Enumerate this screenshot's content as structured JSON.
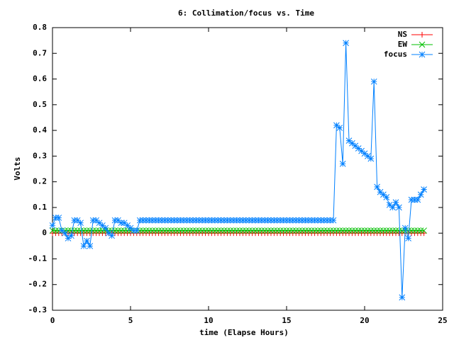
{
  "chart_data": {
    "type": "line",
    "title": "6: Collimation/focus vs. Time",
    "xlabel": "time (Elapse Hours)",
    "ylabel": "Volts",
    "xlim": [
      0,
      25
    ],
    "xticks": [
      0,
      5,
      10,
      15,
      20,
      25
    ],
    "ylim": [
      -0.3,
      0.8
    ],
    "yticks": [
      -0.3,
      -0.2,
      -0.1,
      0,
      0.1,
      0.2,
      0.3,
      0.4,
      0.5,
      0.6,
      0.7,
      0.8
    ],
    "legend": "upper right",
    "x": [
      0,
      0.2,
      0.4,
      0.6,
      0.8,
      1.0,
      1.2,
      1.4,
      1.6,
      1.8,
      2.0,
      2.2,
      2.4,
      2.6,
      2.8,
      3.0,
      3.2,
      3.4,
      3.6,
      3.8,
      4.0,
      4.2,
      4.4,
      4.6,
      4.8,
      5.0,
      5.2,
      5.4,
      5.6,
      5.8,
      6.0,
      6.2,
      6.4,
      6.6,
      6.8,
      7.0,
      7.2,
      7.4,
      7.6,
      7.8,
      8.0,
      8.2,
      8.4,
      8.6,
      8.8,
      9.0,
      9.2,
      9.4,
      9.6,
      9.8,
      10.0,
      10.2,
      10.4,
      10.6,
      10.8,
      11.0,
      11.2,
      11.4,
      11.6,
      11.8,
      12.0,
      12.2,
      12.4,
      12.6,
      12.8,
      13.0,
      13.2,
      13.4,
      13.6,
      13.8,
      14.0,
      14.2,
      14.4,
      14.6,
      14.8,
      15.0,
      15.2,
      15.4,
      15.6,
      15.8,
      16.0,
      16.2,
      16.4,
      16.6,
      16.8,
      17.0,
      17.2,
      17.4,
      17.6,
      17.8,
      18.0,
      18.2,
      18.4,
      18.6,
      18.8,
      19.0,
      19.2,
      19.4,
      19.6,
      19.8,
      20.0,
      20.2,
      20.4,
      20.6,
      20.8,
      21.0,
      21.2,
      21.4,
      21.6,
      21.8,
      22.0,
      22.2,
      22.4,
      22.6,
      22.8,
      23.0,
      23.2,
      23.4,
      23.6,
      23.8
    ],
    "series": [
      {
        "name": "NS",
        "color": "#ff0000",
        "marker": "plus",
        "values": [
          0,
          0,
          0,
          0,
          0,
          0,
          0,
          0,
          0,
          0,
          0,
          0,
          0,
          0,
          0,
          0,
          0,
          0,
          0,
          0,
          0,
          0,
          0,
          0,
          0,
          0,
          0,
          0,
          0,
          0,
          0,
          0,
          0,
          0,
          0,
          0,
          0,
          0,
          0,
          0,
          0,
          0,
          0,
          0,
          0,
          0,
          0,
          0,
          0,
          0,
          0,
          0,
          0,
          0,
          0,
          0,
          0,
          0,
          0,
          0,
          0,
          0,
          0,
          0,
          0,
          0,
          0,
          0,
          0,
          0,
          0,
          0,
          0,
          0,
          0,
          0,
          0,
          0,
          0,
          0,
          0,
          0,
          0,
          0,
          0,
          0,
          0,
          0,
          0,
          0,
          0,
          0,
          0,
          0,
          0,
          0,
          0,
          0,
          0,
          0,
          0,
          0,
          0,
          0,
          0,
          0,
          0,
          0,
          0,
          0,
          0,
          0,
          0,
          0,
          0,
          0,
          0,
          0,
          0,
          0
        ]
      },
      {
        "name": "EW",
        "color": "#00c000",
        "marker": "cross",
        "values": [
          0.01,
          0.01,
          0.01,
          0.01,
          0.01,
          0.01,
          0.01,
          0.01,
          0.01,
          0.01,
          0.01,
          0.01,
          0.01,
          0.01,
          0.01,
          0.01,
          0.01,
          0.01,
          0.01,
          0.01,
          0.01,
          0.01,
          0.01,
          0.01,
          0.01,
          0.01,
          0.01,
          0.01,
          0.01,
          0.01,
          0.01,
          0.01,
          0.01,
          0.01,
          0.01,
          0.01,
          0.01,
          0.01,
          0.01,
          0.01,
          0.01,
          0.01,
          0.01,
          0.01,
          0.01,
          0.01,
          0.01,
          0.01,
          0.01,
          0.01,
          0.01,
          0.01,
          0.01,
          0.01,
          0.01,
          0.01,
          0.01,
          0.01,
          0.01,
          0.01,
          0.01,
          0.01,
          0.01,
          0.01,
          0.01,
          0.01,
          0.01,
          0.01,
          0.01,
          0.01,
          0.01,
          0.01,
          0.01,
          0.01,
          0.01,
          0.01,
          0.01,
          0.01,
          0.01,
          0.01,
          0.01,
          0.01,
          0.01,
          0.01,
          0.01,
          0.01,
          0.01,
          0.01,
          0.01,
          0.01,
          0.01,
          0.01,
          0.01,
          0.01,
          0.01,
          0.01,
          0.01,
          0.01,
          0.01,
          0.01,
          0.01,
          0.01,
          0.01,
          0.01,
          0.01,
          0.01,
          0.01,
          0.01,
          0.01,
          0.01,
          0.01,
          0.01,
          0.01,
          0.01,
          0.01,
          0.01,
          0.01,
          0.01,
          0.01,
          0.01
        ]
      },
      {
        "name": "focus",
        "color": "#0080ff",
        "marker": "star",
        "values": [
          0.03,
          0.06,
          0.06,
          0.01,
          0.0,
          -0.02,
          -0.01,
          0.05,
          0.05,
          0.04,
          -0.05,
          -0.03,
          -0.05,
          0.05,
          0.05,
          0.04,
          0.03,
          0.02,
          0.0,
          -0.01,
          0.05,
          0.05,
          0.04,
          0.04,
          0.03,
          0.02,
          0.01,
          0.01,
          0.05,
          0.05,
          0.05,
          0.05,
          0.05,
          0.05,
          0.05,
          0.05,
          0.05,
          0.05,
          0.05,
          0.05,
          0.05,
          0.05,
          0.05,
          0.05,
          0.05,
          0.05,
          0.05,
          0.05,
          0.05,
          0.05,
          0.05,
          0.05,
          0.05,
          0.05,
          0.05,
          0.05,
          0.05,
          0.05,
          0.05,
          0.05,
          0.05,
          0.05,
          0.05,
          0.05,
          0.05,
          0.05,
          0.05,
          0.05,
          0.05,
          0.05,
          0.05,
          0.05,
          0.05,
          0.05,
          0.05,
          0.05,
          0.05,
          0.05,
          0.05,
          0.05,
          0.05,
          0.05,
          0.05,
          0.05,
          0.05,
          0.05,
          0.05,
          0.05,
          0.05,
          0.05,
          0.05,
          0.42,
          0.41,
          0.27,
          0.74,
          0.36,
          0.35,
          0.34,
          0.33,
          0.32,
          0.31,
          0.3,
          0.29,
          0.59,
          0.18,
          0.16,
          0.15,
          0.14,
          0.11,
          0.1,
          0.12,
          0.1,
          -0.25,
          0.02,
          -0.02,
          0.13,
          0.13,
          0.13,
          0.15,
          0.17
        ]
      }
    ]
  }
}
